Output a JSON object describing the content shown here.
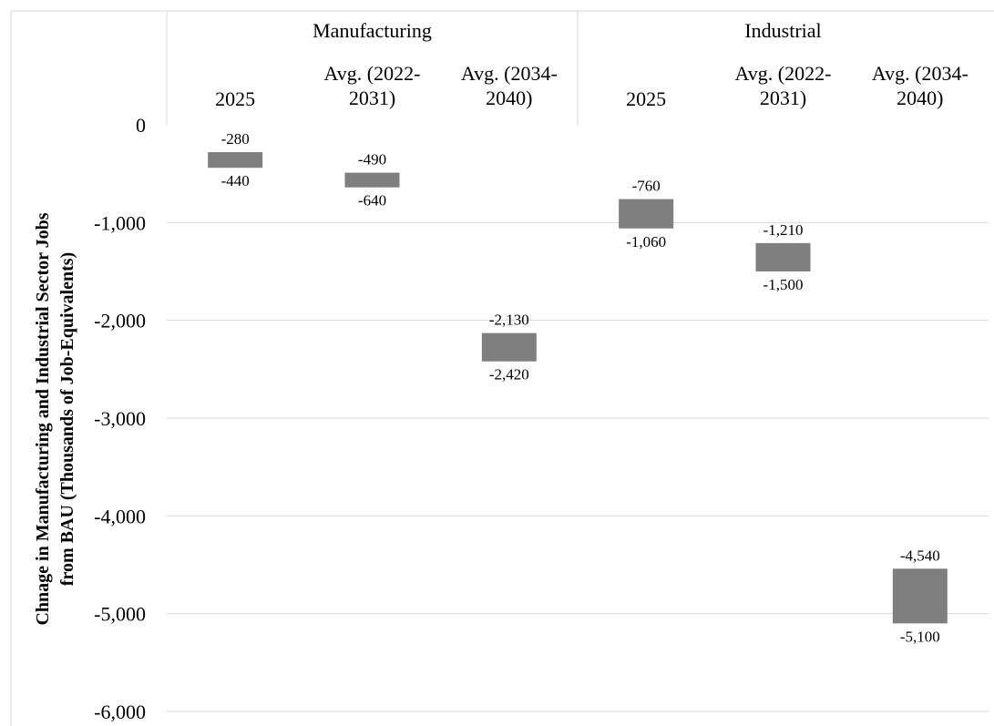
{
  "chart_data": {
    "type": "bar",
    "subtype": "floating-range",
    "title": "",
    "xlabel": "",
    "ylabel": "Chnage in Manufacturing and Industrial Sector Jobs from BAU (Thousands of Job-Equivalents)",
    "ylabel_lines": [
      "Chnage in Manufacturing and Industrial Sector Jobs",
      "from BAU (Thousands of Job-Equivalents)"
    ],
    "ylim": [
      -6000,
      0
    ],
    "yticks": [
      0,
      -1000,
      -2000,
      -3000,
      -4000,
      -5000,
      -6000
    ],
    "ytick_labels": [
      "0",
      "-1,000",
      "-2,000",
      "-3,000",
      "-4,000",
      "-5,000",
      "-6,000"
    ],
    "grid": true,
    "bar_color": "#7f7f7f",
    "groups": [
      {
        "name": "Manufacturing",
        "categories": [
          {
            "label_lines": [
              "2025"
            ],
            "high": -280,
            "low": -440,
            "high_label": "-280",
            "low_label": "-440"
          },
          {
            "label_lines": [
              "Avg. (2022-",
              "2031)"
            ],
            "high": -490,
            "low": -640,
            "high_label": "-490",
            "low_label": "-640"
          },
          {
            "label_lines": [
              "Avg. (2034-",
              "2040)"
            ],
            "high": -2130,
            "low": -2420,
            "high_label": "-2,130",
            "low_label": "-2,420"
          }
        ]
      },
      {
        "name": "Industrial",
        "categories": [
          {
            "label_lines": [
              "2025"
            ],
            "high": -760,
            "low": -1060,
            "high_label": "-760",
            "low_label": "-1,060"
          },
          {
            "label_lines": [
              "Avg. (2022-",
              "2031)"
            ],
            "high": -1210,
            "low": -1500,
            "high_label": "-1,210",
            "low_label": "-1,500"
          },
          {
            "label_lines": [
              "Avg. (2034-",
              "2040)"
            ],
            "high": -4540,
            "low": -5100,
            "high_label": "-4,540",
            "low_label": "-5,100"
          }
        ]
      }
    ]
  }
}
